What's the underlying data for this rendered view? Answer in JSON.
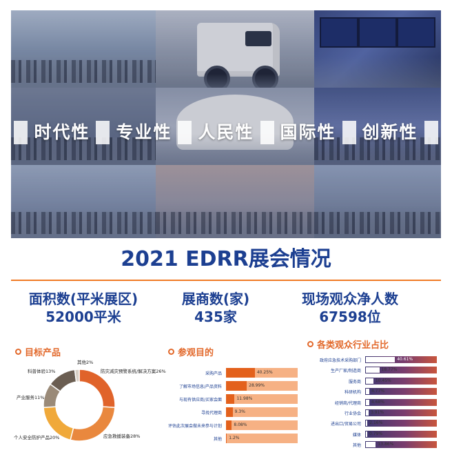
{
  "banner": {
    "words": [
      "时代性",
      "专业性",
      "人民性",
      "国际性",
      "创新性"
    ]
  },
  "title": "2021 EDRR展会情况",
  "stats": [
    {
      "label": "面积数(平米展区)",
      "value": "52000平米"
    },
    {
      "label": "展商数(家)",
      "value": "435家"
    },
    {
      "label": "现场观众净人数",
      "value": "67598位"
    }
  ],
  "target_products": {
    "heading": "目标产品",
    "segments": [
      {
        "label": "防灾减灾预警系统/解决方案26%",
        "value": 26,
        "color": "#e0632a"
      },
      {
        "label": "应急救援装备28%",
        "value": 28,
        "color": "#e9883e"
      },
      {
        "label": "个人安全防护产品20%",
        "value": 20,
        "color": "#f0a93a"
      },
      {
        "label": "产业服务11%",
        "value": 11,
        "color": "#9a8a78"
      },
      {
        "label": "科普体验13%",
        "value": 13,
        "color": "#6b5e52"
      },
      {
        "label": "其他2%",
        "value": 2,
        "color": "#d8cfc4"
      }
    ]
  },
  "visit_purpose": {
    "heading": "参观目的",
    "items": [
      {
        "label": "采购产品",
        "value": "40.25%",
        "pct": 40.25
      },
      {
        "label": "了解市场信息/产品资料",
        "value": "28.99%",
        "pct": 28.99
      },
      {
        "label": "与现有供应商/买家会面",
        "value": "11.98%",
        "pct": 11.98
      },
      {
        "label": "寻找代理商",
        "value": "9.3%",
        "pct": 9.3
      },
      {
        "label": "评估此次展会做未来参与计划",
        "value": "8.08%",
        "pct": 8.08
      },
      {
        "label": "其他",
        "value": "1.2%",
        "pct": 1.2
      }
    ]
  },
  "industry": {
    "heading": "各类观众行业占比",
    "items": [
      {
        "label": "政府应急技术采购部门",
        "value": "40.61%",
        "pct": 40.61
      },
      {
        "label": "生产厂家/制造商",
        "value": "18.77%",
        "pct": 18.77
      },
      {
        "label": "服务商",
        "value": "10.45%",
        "pct": 10.45
      },
      {
        "label": "科研机构",
        "value": "4.77%",
        "pct": 4.77
      },
      {
        "label": "经销商/代理商",
        "value": "4.68%",
        "pct": 4.68
      },
      {
        "label": "行业协会",
        "value": "3.91%",
        "pct": 3.91
      },
      {
        "label": "进出口/贸易公司",
        "value": "2.16%",
        "pct": 2.16
      },
      {
        "label": "媒体",
        "value": "0.79%",
        "pct": 0.79
      },
      {
        "label": "其他",
        "value": "13.86%",
        "pct": 13.86
      }
    ]
  },
  "colors": {
    "brand_blue": "#1c3f91",
    "accent_orange": "#e2682a"
  }
}
